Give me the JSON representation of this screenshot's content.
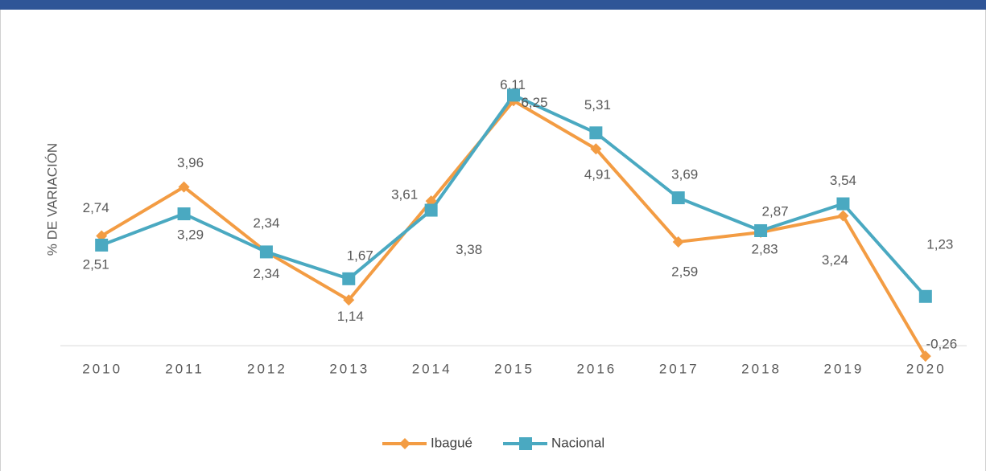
{
  "chart_data": {
    "type": "line",
    "ylabel": "% DE VARIACIÓN",
    "categories": [
      "2010",
      "2011",
      "2012",
      "2013",
      "2014",
      "2015",
      "2016",
      "2017",
      "2018",
      "2019",
      "2020"
    ],
    "series": [
      {
        "name": "Ibagué",
        "color": "#f39c43",
        "values": [
          2.74,
          3.96,
          2.34,
          1.14,
          3.61,
          6.11,
          4.91,
          2.59,
          2.83,
          3.24,
          -0.26
        ],
        "value_labels": [
          "2,74",
          "3,96",
          "2,34",
          "1,14",
          "3,61",
          "6,11",
          "4,91",
          "2,59",
          "2,83",
          "3,24",
          "-0,26"
        ]
      },
      {
        "name": "Nacional",
        "color": "#4aa9c1",
        "values": [
          2.51,
          3.29,
          2.34,
          1.67,
          3.38,
          6.25,
          5.31,
          3.69,
          2.87,
          3.54,
          1.23
        ],
        "value_labels": [
          "2,51",
          "3,29",
          "2,34",
          "1,67",
          "3,38",
          "6,25",
          "5,31",
          "3,69",
          "2,87",
          "3,54",
          "1,23"
        ]
      }
    ],
    "ylim": [
      -1,
      7
    ],
    "grid": false,
    "legend": "bottom"
  }
}
